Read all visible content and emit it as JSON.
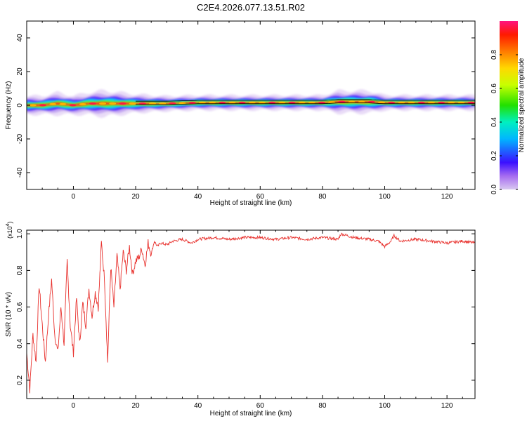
{
  "title": "C2E4.2026.077.13.51.R02",
  "colors": {
    "line": "#e8302c",
    "frame": "#000000",
    "background": "#ffffff"
  },
  "chart_data": [
    {
      "type": "heatmap",
      "xlabel": "Height of straight line (km)",
      "ylabel": "Frequency (Hz)",
      "xlim": [
        -15,
        129
      ],
      "ylim": [
        -50,
        50
      ],
      "xticks": [
        "0",
        "20",
        "40",
        "60",
        "80",
        "100",
        "120"
      ],
      "xtick_values": [
        0,
        20,
        40,
        60,
        80,
        100,
        120
      ],
      "yticks": [
        "40",
        "20",
        "0",
        "-20",
        "-40"
      ],
      "ytick_values": [
        40,
        20,
        0,
        -20,
        -40
      ],
      "colorbar": {
        "label": "Normalized spectral amplitude",
        "range": [
          0,
          1
        ],
        "ticks": [
          "0.0",
          "0.2",
          "0.4",
          "0.6",
          "0.8"
        ],
        "tick_values": [
          0.0,
          0.2,
          0.4,
          0.6,
          0.8
        ]
      },
      "band": [
        {
          "x": -15,
          "center": 0,
          "width": 5
        },
        {
          "x": -10,
          "center": 0,
          "width": 5
        },
        {
          "x": -5,
          "center": 1,
          "width": 6
        },
        {
          "x": 0,
          "center": 0,
          "width": 5
        },
        {
          "x": 5,
          "center": 1,
          "width": 6
        },
        {
          "x": 10,
          "center": 1,
          "width": 7
        },
        {
          "x": 15,
          "center": 1,
          "width": 6
        },
        {
          "x": 20,
          "center": 1,
          "width": 5
        },
        {
          "x": 30,
          "center": 1,
          "width": 4
        },
        {
          "x": 40,
          "center": 1.5,
          "width": 4
        },
        {
          "x": 60,
          "center": 1.5,
          "width": 4
        },
        {
          "x": 80,
          "center": 1.5,
          "width": 4
        },
        {
          "x": 85,
          "center": 2,
          "width": 6
        },
        {
          "x": 95,
          "center": 2,
          "width": 6
        },
        {
          "x": 100,
          "center": 1.5,
          "width": 4
        },
        {
          "x": 129,
          "center": 1.5,
          "width": 4
        }
      ]
    },
    {
      "type": "line",
      "xlabel": "Height of straight line (km)",
      "ylabel": "SNR (10 * v/v)",
      "scale_note": "(x10",
      "scale_exp": "4",
      "scale_close": ")",
      "xlim": [
        -15,
        129
      ],
      "ylim": [
        0.1,
        1.02
      ],
      "xticks": [
        "0",
        "20",
        "40",
        "60",
        "80",
        "100",
        "120"
      ],
      "xtick_values": [
        0,
        20,
        40,
        60,
        80,
        100,
        120
      ],
      "yticks": [
        "1.0",
        "0.8",
        "0.6",
        "0.4",
        "0.2"
      ],
      "ytick_values": [
        1.0,
        0.8,
        0.6,
        0.4,
        0.2
      ],
      "series": [
        {
          "x": [
            -15,
            -14,
            -13,
            -12,
            -11,
            -10,
            -9,
            -8,
            -7,
            -6,
            -5,
            -4,
            -3,
            -2,
            -1,
            0,
            1,
            2,
            3,
            4,
            5,
            6,
            7,
            8,
            9,
            10,
            11,
            12,
            13,
            14,
            15,
            16,
            17,
            18,
            19,
            20,
            21,
            22,
            23,
            24,
            25,
            26,
            27,
            28,
            30,
            32,
            35,
            38,
            40,
            45,
            50,
            55,
            60,
            65,
            70,
            75,
            80,
            85,
            86,
            90,
            95,
            98,
            100,
            102,
            103,
            105,
            110,
            115,
            120,
            125,
            129
          ],
          "y": [
            0.35,
            0.15,
            0.45,
            0.3,
            0.72,
            0.5,
            0.3,
            0.55,
            0.75,
            0.45,
            0.35,
            0.6,
            0.4,
            0.85,
            0.5,
            0.35,
            0.65,
            0.4,
            0.62,
            0.5,
            0.7,
            0.55,
            0.68,
            0.6,
            0.95,
            0.75,
            0.3,
            0.82,
            0.6,
            0.88,
            0.7,
            0.9,
            0.8,
            0.93,
            0.78,
            0.85,
            0.87,
            0.92,
            0.83,
            0.95,
            0.89,
            0.96,
            0.93,
            0.95,
            0.94,
            0.96,
            0.97,
            0.95,
            0.97,
            0.98,
            0.97,
            0.98,
            0.98,
            0.97,
            0.98,
            0.97,
            0.98,
            0.97,
            1.0,
            0.98,
            0.97,
            0.96,
            0.93,
            0.96,
            0.99,
            0.96,
            0.97,
            0.96,
            0.95,
            0.96,
            0.95
          ]
        }
      ]
    }
  ]
}
